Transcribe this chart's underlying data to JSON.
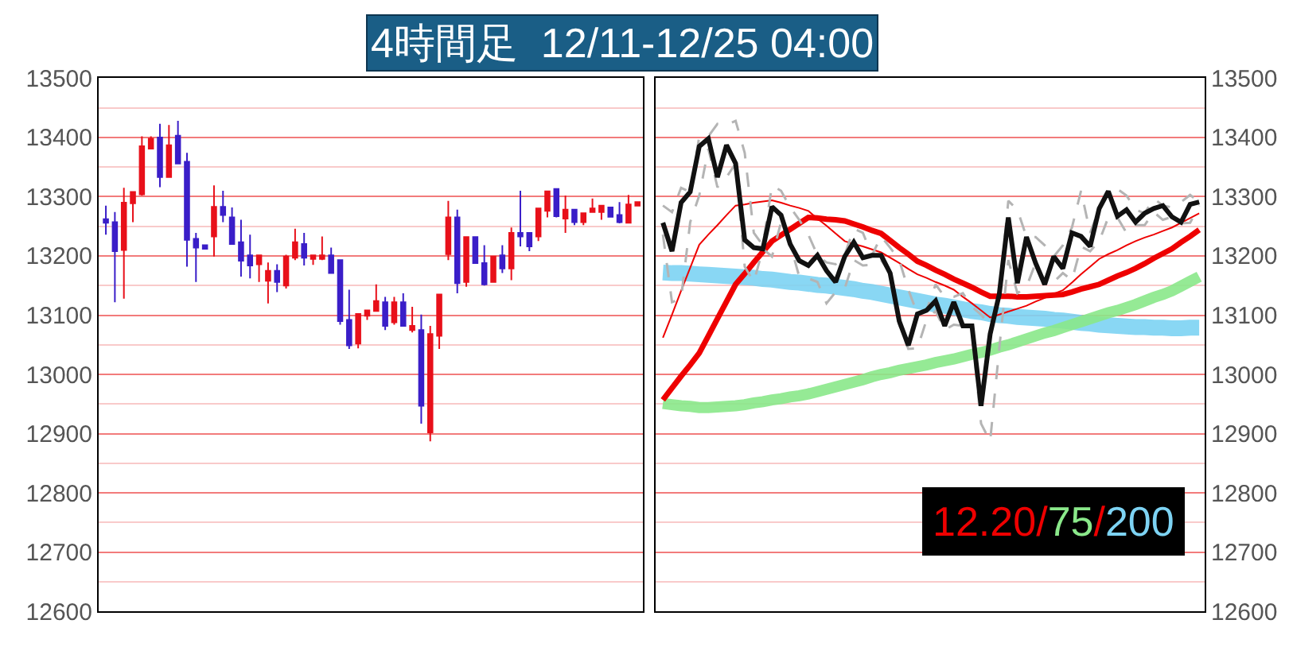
{
  "chart_data": [
    {
      "type": "candlestick",
      "title": "4時間足  12/11-12/25 04:00",
      "categories": [
        null,
        null,
        null,
        null,
        null,
        null,
        null,
        null,
        null,
        null,
        null,
        null,
        null,
        null,
        null,
        null,
        null,
        null,
        null,
        null,
        null,
        null,
        null,
        null,
        null,
        null,
        null,
        null,
        null,
        null,
        null,
        null,
        null,
        null,
        null,
        null,
        null,
        null,
        null,
        null,
        null,
        null,
        null,
        null,
        null,
        null,
        null,
        null,
        null,
        null,
        null,
        null,
        null,
        null,
        null,
        null,
        null,
        null,
        null,
        null
      ],
      "ohlc": [
        [
          13262,
          13285,
          13236,
          13256
        ],
        [
          13257,
          13274,
          13122,
          13208
        ],
        [
          13210,
          13315,
          13128,
          13290
        ],
        [
          13289,
          13308,
          13257,
          13308
        ],
        [
          13304,
          13402,
          13302,
          13385
        ],
        [
          13381,
          13402,
          13381,
          13398
        ],
        [
          13400,
          13423,
          13316,
          13333
        ],
        [
          13333,
          13421,
          13333,
          13387
        ],
        [
          13403,
          13428,
          13356,
          13356
        ],
        [
          13359,
          13374,
          13182,
          13227
        ],
        [
          13229,
          13239,
          13156,
          13214
        ],
        [
          13218,
          13218,
          13212,
          13212
        ],
        [
          13233,
          13319,
          13199,
          13283
        ],
        [
          13283,
          13310,
          13257,
          13269
        ],
        [
          13265,
          13282,
          13220,
          13220
        ],
        [
          13223,
          13261,
          13165,
          13192
        ],
        [
          13201,
          13236,
          13162,
          13184
        ],
        [
          13186,
          13201,
          13156,
          13201
        ],
        [
          13158,
          13189,
          13120,
          13175
        ],
        [
          13175,
          13186,
          13139,
          13156
        ],
        [
          13150,
          13202,
          13145,
          13199
        ],
        [
          13197,
          13246,
          13193,
          13223
        ],
        [
          13220,
          13239,
          13184,
          13197
        ],
        [
          13195,
          13201,
          13185,
          13201
        ],
        [
          13195,
          13233,
          13193,
          13201
        ],
        [
          13201,
          13214,
          13171,
          13171
        ],
        [
          13193,
          13193,
          13084,
          13090
        ],
        [
          13092,
          13143,
          13043,
          13049
        ],
        [
          13052,
          13102,
          13044,
          13102
        ],
        [
          13099,
          13108,
          13092,
          13108
        ],
        [
          13107,
          13152,
          13107,
          13124
        ],
        [
          13122,
          13131,
          13075,
          13082
        ],
        [
          13088,
          13131,
          13084,
          13122
        ],
        [
          13122,
          13137,
          13082,
          13082
        ],
        [
          13075,
          13114,
          13071,
          13082
        ],
        [
          13075,
          13101,
          12917,
          12947
        ],
        [
          12902,
          13082,
          12887,
          13068
        ],
        [
          13065,
          13135,
          13043,
          13135
        ],
        [
          13203,
          13293,
          13193,
          13265
        ],
        [
          13265,
          13278,
          13137,
          13154
        ],
        [
          13156,
          13232,
          13148,
          13232
        ],
        [
          13232,
          13232,
          13188,
          13188
        ],
        [
          13188,
          13218,
          13150,
          13152
        ],
        [
          13156,
          13199,
          13156,
          13199
        ],
        [
          13201,
          13218,
          13171,
          13179
        ],
        [
          13179,
          13248,
          13159,
          13239
        ],
        [
          13239,
          13310,
          13216,
          13233
        ],
        [
          13239,
          13239,
          13208,
          13216
        ],
        [
          13233,
          13280,
          13225,
          13280
        ],
        [
          13276,
          13309,
          13265,
          13309
        ],
        [
          13313,
          13313,
          13265,
          13267
        ],
        [
          13263,
          13302,
          13239,
          13278
        ],
        [
          13278,
          13278,
          13252,
          13257
        ],
        [
          13257,
          13272,
          13252,
          13272
        ],
        [
          13274,
          13297,
          13274,
          13280
        ],
        [
          13274,
          13285,
          13261,
          13285
        ],
        [
          13282,
          13282,
          13266,
          13266
        ],
        [
          13269,
          13291,
          13255,
          13257
        ],
        [
          13256,
          13303,
          13256,
          13287
        ],
        [
          13285,
          13291,
          13285,
          13291
        ]
      ],
      "ylim": [
        12600,
        13500
      ],
      "yticks": [
        12600,
        {
          "value": 12650,
          "label": null
        },
        12700,
        {
          "value": 12750,
          "label": null
        },
        12800,
        {
          "value": 12850,
          "label": null
        },
        12900,
        {
          "value": 12950,
          "label": null
        },
        13000,
        {
          "value": 13050,
          "label": null
        },
        13100,
        {
          "value": 13150,
          "label": null
        },
        13200,
        {
          "value": 13250,
          "label": null
        },
        13300,
        {
          "value": 13350,
          "label": null
        },
        13400,
        {
          "value": 13450,
          "label": null
        },
        13500
      ],
      "grid": "y",
      "tick_labels": "y"
    },
    {
      "type": "line",
      "categories": [
        null,
        null,
        null,
        null,
        null,
        null,
        null,
        null,
        null,
        null,
        null,
        null,
        null,
        null,
        null,
        null,
        null,
        null,
        null,
        null,
        null,
        null,
        null,
        null,
        null,
        null,
        null,
        null,
        null,
        null,
        null,
        null,
        null,
        null,
        null,
        null,
        null,
        null,
        null,
        null,
        null,
        null,
        null,
        null,
        null,
        null,
        null,
        null,
        null,
        null,
        null,
        null,
        null,
        null,
        null,
        null,
        null,
        null,
        null,
        null
      ],
      "series": [
        {
          "color": "#7dd3f3",
          "values": [
            13172,
            13171,
            13171,
            13170,
            13169,
            13168,
            13167,
            13166,
            13165,
            13164,
            13163,
            13161,
            13160,
            13158,
            13156,
            13155,
            13153,
            13151,
            13150,
            13148,
            13146,
            13144,
            13141,
            13139,
            13136,
            13133,
            13130,
            13127,
            13124,
            13121,
            13118,
            13116,
            13113,
            13110,
            13107,
            13105,
            13102,
            13100,
            13099,
            13097,
            13096,
            13095,
            13094,
            13092,
            13091,
            13089,
            13087,
            13086,
            13084,
            13083,
            13082,
            13081,
            13080,
            13080,
            13079,
            13079,
            13078,
            13078,
            13079,
            13079
          ]
        },
        {
          "color": "#8ae88a",
          "values": [
            12951,
            12949,
            12947,
            12946,
            12944,
            12944,
            12945,
            12946,
            12947,
            12949,
            12952,
            12954,
            12957,
            12959,
            12962,
            12964,
            12967,
            12971,
            12975,
            12979,
            12983,
            12987,
            12991,
            12996,
            13000,
            13003,
            13007,
            13010,
            13013,
            13016,
            13020,
            13023,
            13026,
            13030,
            13034,
            13037,
            13041,
            13046,
            13050,
            13055,
            13060,
            13065,
            13070,
            13074,
            13079,
            13084,
            13089,
            13094,
            13099,
            13104,
            13108,
            13113,
            13118,
            13124,
            13130,
            13135,
            13141,
            13149,
            13157,
            13165
          ]
        },
        {
          "color": "#ee0000",
          "values": [
            12957,
            12977,
            12997,
            13016,
            13036,
            13065,
            13094,
            13123,
            13152,
            13170,
            13189,
            13207,
            13225,
            13235,
            13245,
            13255,
            13265,
            13264,
            13262,
            13261,
            13259,
            13254,
            13249,
            13243,
            13238,
            13226,
            13214,
            13203,
            13191,
            13184,
            13176,
            13169,
            13161,
            13154,
            13147,
            13139,
            13132,
            13132,
            13132,
            13131,
            13131,
            13132,
            13133,
            13134,
            13135,
            13139,
            13144,
            13148,
            13152,
            13159,
            13166,
            13172,
            13179,
            13187,
            13196,
            13204,
            13212,
            13223,
            13233,
            13244
          ]
        },
        {
          "color": "#ee0000",
          "values": [
            13062,
            13101,
            13141,
            13180,
            13219,
            13236,
            13252,
            13269,
            13285,
            13287,
            13290,
            13292,
            13294,
            13290,
            13285,
            13281,
            13276,
            13263,
            13251,
            13238,
            13225,
            13220,
            13216,
            13211,
            13206,
            13197,
            13188,
            13178,
            13169,
            13163,
            13156,
            13150,
            13143,
            13131,
            13120,
            13108,
            13096,
            13101,
            13106,
            13111,
            13116,
            13123,
            13129,
            13136,
            13142,
            13155,
            13169,
            13182,
            13195,
            13203,
            13210,
            13218,
            13225,
            13231,
            13236,
            13242,
            13248,
            13256,
            13264,
            13272
          ]
        },
        {
          "color": "#b4b4b4",
          "line_style": "dashed",
          "values": [
            13285,
            13274,
            13315,
            13308,
            13402,
            13402,
            13423,
            13421,
            13428,
            13374,
            13239,
            13218,
            13319,
            13310,
            13282,
            13261,
            13236,
            13201,
            13189,
            13186,
            13202,
            13246,
            13239,
            13201,
            13233,
            13214,
            13193,
            13143,
            13102,
            13108,
            13152,
            13131,
            13131,
            13137,
            13114,
            13101,
            13082,
            13135,
            13293,
            13278,
            13232,
            13232,
            13218,
            13199,
            13218,
            13248,
            13310,
            13239,
            13280,
            13309,
            13313,
            13302,
            13278,
            13272,
            13297,
            13285,
            13282,
            13291,
            13303,
            13291
          ]
        },
        {
          "color": "#b4b4b4",
          "line_style": "dashed",
          "values": [
            13236,
            13122,
            13128,
            13257,
            13302,
            13381,
            13316,
            13333,
            13356,
            13182,
            13156,
            13212,
            13199,
            13257,
            13220,
            13165,
            13162,
            13156,
            13120,
            13139,
            13145,
            13193,
            13184,
            13185,
            13193,
            13171,
            13084,
            13043,
            13044,
            13092,
            13107,
            13075,
            13084,
            13082,
            13071,
            12917,
            12887,
            13043,
            13193,
            13137,
            13148,
            13188,
            13150,
            13156,
            13171,
            13159,
            13216,
            13208,
            13225,
            13265,
            13265,
            13239,
            13252,
            13252,
            13274,
            13261,
            13266,
            13255,
            13256,
            13285
          ]
        },
        {
          "color": "#111111",
          "values": [
            13256,
            13208,
            13290,
            13308,
            13385,
            13398,
            13333,
            13387,
            13356,
            13227,
            13214,
            13212,
            13283,
            13269,
            13220,
            13192,
            13184,
            13201,
            13175,
            13156,
            13199,
            13223,
            13197,
            13201,
            13201,
            13171,
            13090,
            13049,
            13102,
            13108,
            13124,
            13082,
            13122,
            13082,
            13082,
            12947,
            13068,
            13135,
            13265,
            13154,
            13232,
            13188,
            13152,
            13199,
            13179,
            13239,
            13233,
            13216,
            13280,
            13309,
            13267,
            13278,
            13257,
            13272,
            13280,
            13285,
            13266,
            13257,
            13287,
            13291
          ]
        }
      ],
      "annotations": [
        "12.20/75/200"
      ],
      "ylim": [
        12600,
        13500
      ],
      "yticks": [
        12600,
        {
          "value": 12650,
          "label": null
        },
        12700,
        {
          "value": 12750,
          "label": null
        },
        12800,
        {
          "value": 12850,
          "label": null
        },
        12900,
        {
          "value": 12950,
          "label": null
        },
        13000,
        {
          "value": 13050,
          "label": null
        },
        13100,
        {
          "value": 13150,
          "label": null
        },
        13200,
        {
          "value": 13250,
          "label": null
        },
        13300,
        {
          "value": 13350,
          "label": null
        },
        13400,
        {
          "value": 13450,
          "label": null
        },
        13500
      ],
      "grid": "y",
      "tick_labels": "y",
      "marker": "none",
      "line_style": "solid"
    }
  ]
}
